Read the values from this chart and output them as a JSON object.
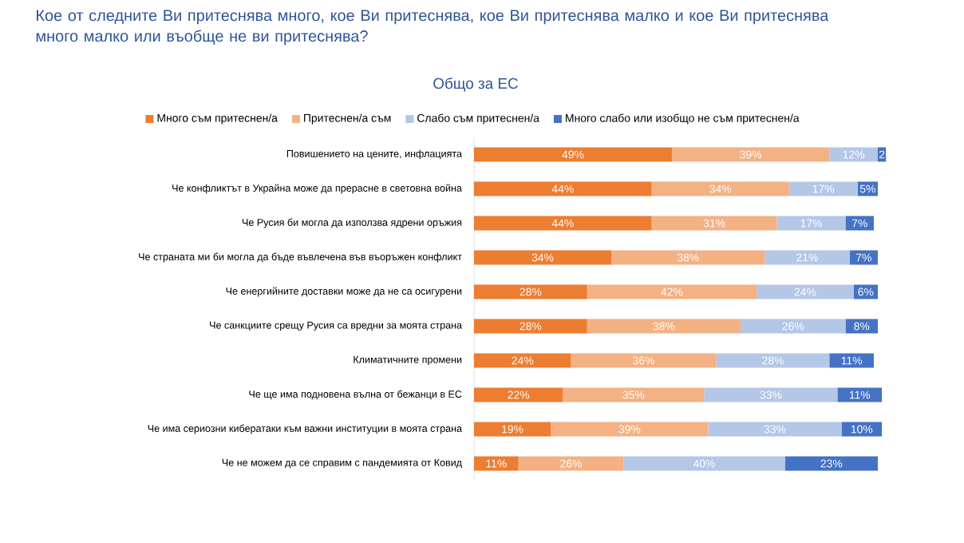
{
  "chart_data": {
    "type": "bar",
    "orientation": "horizontal",
    "stacked": true,
    "legend": "top",
    "title": "Кое от следните Ви притеснява много, кое Ви притеснява, кое Ви притеснява малко и кое Ви притеснява много малко или въобще не ви притеснява?",
    "subtitle": "Общо за ЕС",
    "categories": [
      "Повишението на цените, инфлацията",
      "Че конфликтът в Украйна може да прерасне в световна война",
      "Че Русия би могла да използва ядрени оръжия",
      "Че страната ми би могла да бъде въвлечена във въоръжен конфликт",
      "Че енергийните доставки може да не са осигурени",
      "Че санкциите срещу Русия са вредни за моята страна",
      "Климатичните промени",
      "Че ще има подновена вълна от бежанци в ЕС",
      "Че има сериозни кибератаки към важни институции в моята страна",
      "Че не можем да се справим с пандемията от Ковид"
    ],
    "series": [
      {
        "name": "Много съм притеснен/а",
        "color": "#ed7d31",
        "values": [
          49,
          44,
          44,
          34,
          28,
          28,
          24,
          22,
          19,
          11
        ],
        "value_labels": [
          "49%",
          "44%",
          "44%",
          "34%",
          "28%",
          "28%",
          "24%",
          "22%",
          "19%",
          "11%"
        ]
      },
      {
        "name": "Притеснен/а съм",
        "color": "#f4b183",
        "values": [
          39,
          34,
          31,
          38,
          42,
          38,
          36,
          35,
          39,
          26
        ],
        "value_labels": [
          "39%",
          "34%",
          "31%",
          "38%",
          "42%",
          "38%",
          "36%",
          "35%",
          "39%",
          "26%"
        ]
      },
      {
        "name": "Слабо съм притеснен/а",
        "color": "#b4c7e7",
        "values": [
          12,
          17,
          17,
          21,
          24,
          26,
          28,
          33,
          33,
          40
        ],
        "value_labels": [
          "12%",
          "17%",
          "17%",
          "21%",
          "24%",
          "26%",
          "28%",
          "33%",
          "33%",
          "40%"
        ]
      },
      {
        "name": "Много слабо или изобщо не съм притеснен/а",
        "color": "#4472c4",
        "values": [
          2,
          5,
          7,
          7,
          6,
          8,
          11,
          11,
          10,
          23
        ],
        "value_labels": [
          "2",
          "5%",
          "7%",
          "7%",
          "6%",
          "8%",
          "11%",
          "11%",
          "10%",
          "23%"
        ]
      }
    ]
  }
}
